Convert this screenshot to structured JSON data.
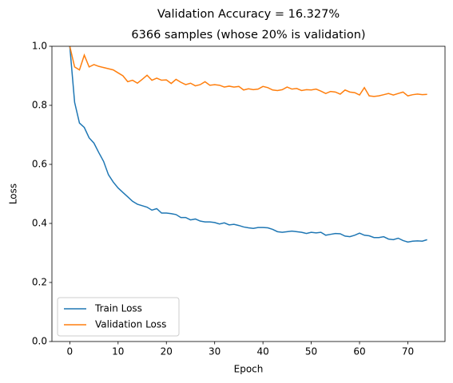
{
  "chart_data": {
    "type": "line",
    "suptitle": "Validation Accuracy = 16.327%",
    "title": "6366 samples (whose 20% is validation)",
    "x_label": "Epoch",
    "y_label": "Loss",
    "x": [
      0,
      1,
      2,
      3,
      4,
      5,
      6,
      7,
      8,
      9,
      10,
      11,
      12,
      13,
      14,
      15,
      16,
      17,
      18,
      19,
      20,
      21,
      22,
      23,
      24,
      25,
      26,
      27,
      28,
      29,
      30,
      31,
      32,
      33,
      34,
      35,
      36,
      37,
      38,
      39,
      40,
      41,
      42,
      43,
      44,
      45,
      46,
      47,
      48,
      49,
      50,
      51,
      52,
      53,
      54,
      55,
      56,
      57,
      58,
      59,
      60,
      61,
      62,
      63,
      64,
      65,
      66,
      67,
      68,
      69,
      70,
      71,
      72,
      73,
      74
    ],
    "series": [
      {
        "name": "Train Loss",
        "color": "#1f77b4",
        "values": [
          1.0,
          0.81,
          0.74,
          0.725,
          0.69,
          0.672,
          0.64,
          0.61,
          0.565,
          0.54,
          0.52,
          0.505,
          0.49,
          0.475,
          0.465,
          0.46,
          0.455,
          0.445,
          0.45,
          0.435,
          0.435,
          0.433,
          0.43,
          0.42,
          0.42,
          0.412,
          0.415,
          0.408,
          0.405,
          0.405,
          0.403,
          0.398,
          0.402,
          0.395,
          0.397,
          0.393,
          0.388,
          0.385,
          0.383,
          0.386,
          0.386,
          0.385,
          0.38,
          0.372,
          0.37,
          0.372,
          0.374,
          0.372,
          0.37,
          0.366,
          0.37,
          0.368,
          0.37,
          0.36,
          0.363,
          0.366,
          0.365,
          0.357,
          0.355,
          0.36,
          0.367,
          0.36,
          0.358,
          0.352,
          0.352,
          0.355,
          0.347,
          0.345,
          0.35,
          0.342,
          0.337,
          0.34,
          0.341,
          0.34,
          0.345
        ]
      },
      {
        "name": "Validation Loss",
        "color": "#ff7f0e",
        "values": [
          1.0,
          0.93,
          0.92,
          0.97,
          0.93,
          0.938,
          0.932,
          0.928,
          0.924,
          0.92,
          0.91,
          0.9,
          0.88,
          0.885,
          0.875,
          0.888,
          0.902,
          0.885,
          0.892,
          0.885,
          0.886,
          0.874,
          0.888,
          0.878,
          0.87,
          0.875,
          0.866,
          0.87,
          0.88,
          0.868,
          0.87,
          0.868,
          0.862,
          0.865,
          0.862,
          0.864,
          0.852,
          0.856,
          0.853,
          0.855,
          0.864,
          0.86,
          0.852,
          0.85,
          0.853,
          0.862,
          0.855,
          0.857,
          0.85,
          0.853,
          0.852,
          0.855,
          0.848,
          0.84,
          0.847,
          0.845,
          0.838,
          0.852,
          0.845,
          0.843,
          0.835,
          0.86,
          0.832,
          0.83,
          0.832,
          0.836,
          0.84,
          0.835,
          0.84,
          0.845,
          0.832,
          0.836,
          0.838,
          0.836,
          0.837
        ]
      }
    ],
    "xlim": [
      -3.7,
      77.7
    ],
    "ylim": [
      0,
      1
    ],
    "xticks": [
      0,
      10,
      20,
      30,
      40,
      50,
      60,
      70
    ],
    "yticks": [
      {
        "value": 0,
        "label": "0.0"
      },
      0.2,
      0.4,
      0.6,
      0.8,
      {
        "value": 1,
        "label": "1.0"
      }
    ],
    "legend": "lower left"
  }
}
